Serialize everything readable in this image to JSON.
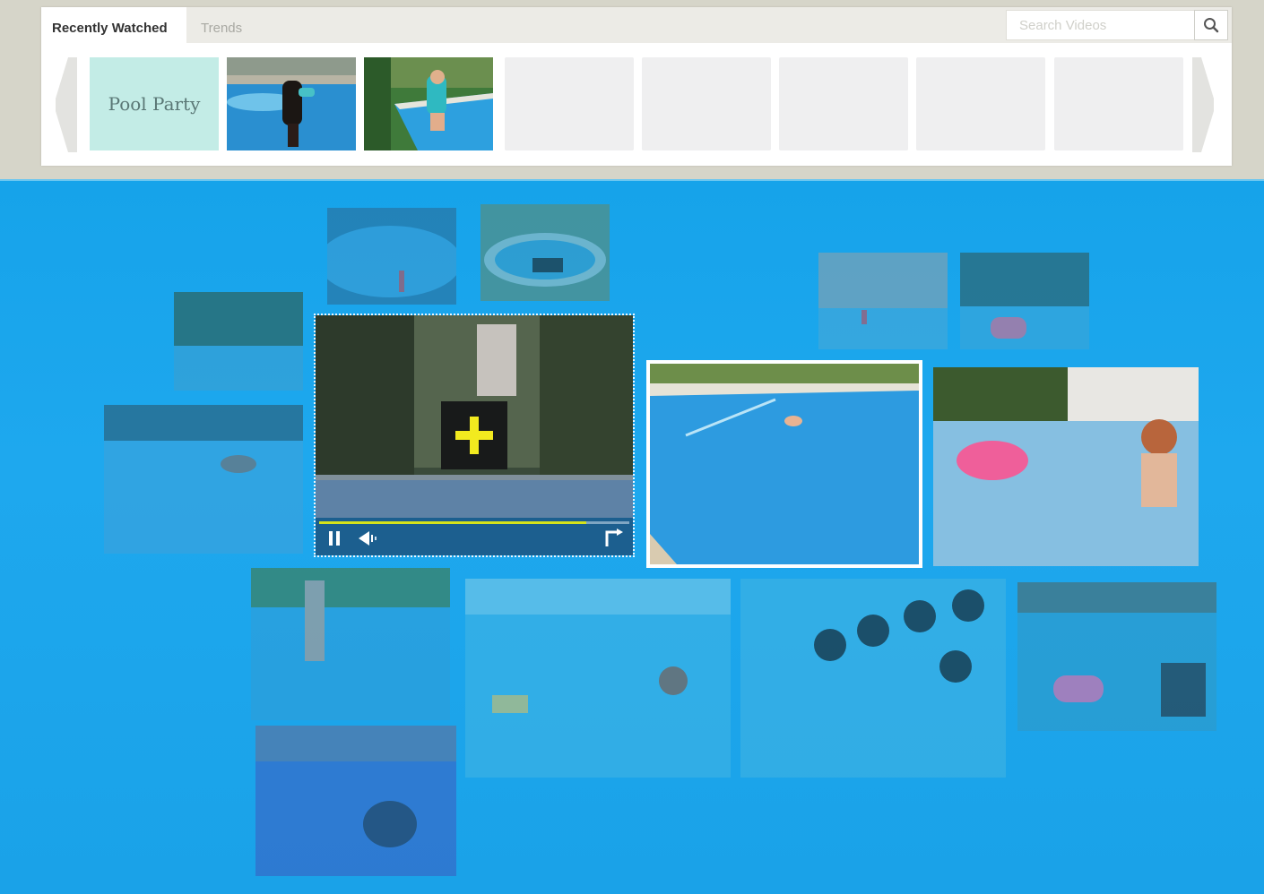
{
  "tabs": [
    {
      "label": "Recently Watched",
      "active": true
    },
    {
      "label": "Trends",
      "active": false
    }
  ],
  "search": {
    "placeholder": "Search Videos",
    "icon": "search-icon"
  },
  "recent_strip": {
    "collection_label": "Pool Party",
    "left_arrow_icon": "chevron-left-icon",
    "right_arrow_icon": "chevron-right-icon"
  },
  "player": {
    "progress": 0.86,
    "icons": [
      "pause-icon",
      "volume-icon",
      "fullscreen-icon"
    ],
    "overlay_icon": "plus-icon"
  },
  "colors": {
    "stage_blue": "#1aa2e8",
    "plus_yellow": "#f2ea1f",
    "progress_yellow": "#d6e31a",
    "card_mint": "#c3ece6"
  }
}
